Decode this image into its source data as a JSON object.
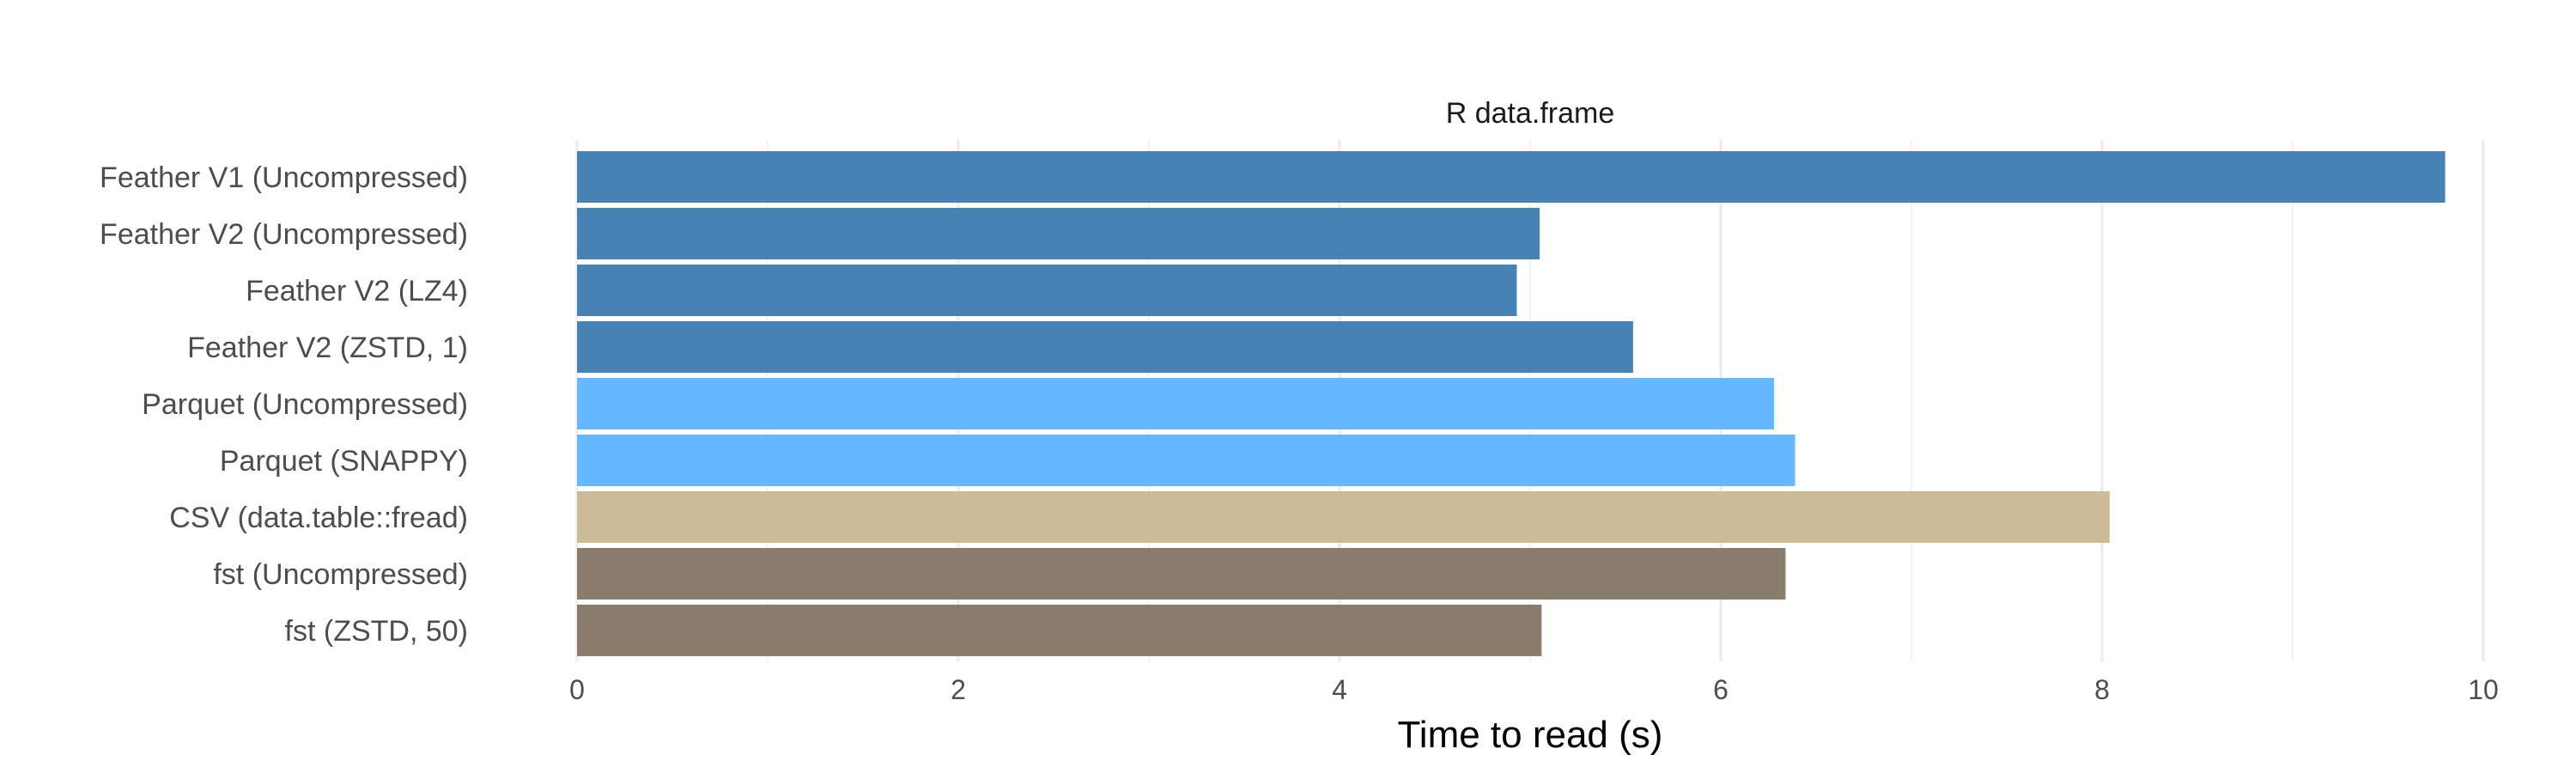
{
  "chart_data": {
    "type": "bar",
    "orientation": "horizontal",
    "panel_title": "R data.frame",
    "xlabel": "Time to read (s)",
    "ylabel": "",
    "xlim": [
      0,
      10
    ],
    "x_ticks": [
      0,
      2,
      4,
      6,
      8,
      10
    ],
    "grid": true,
    "categories": [
      "Feather V1 (Uncompressed)",
      "Feather V2 (Uncompressed)",
      "Feather V2 (LZ4)",
      "Feather V2 (ZSTD, 1)",
      "Parquet (Uncompressed)",
      "Parquet (SNAPPY)",
      "CSV (data.table::fread)",
      "fst (Uncompressed)",
      "fst (ZSTD, 50)"
    ],
    "values": [
      9.8,
      5.05,
      4.93,
      5.54,
      6.28,
      6.39,
      8.04,
      6.34,
      5.06
    ],
    "colors": [
      "#4682b4",
      "#4682b4",
      "#4682b4",
      "#4682b4",
      "#63b8ff",
      "#63b8ff",
      "#cdba96",
      "#8b7d6b",
      "#8b7d6b"
    ]
  }
}
